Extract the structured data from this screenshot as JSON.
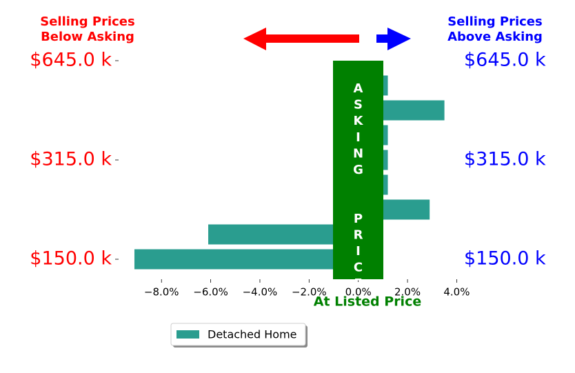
{
  "chart_data": {
    "type": "bar",
    "orientation": "horizontal",
    "annotations": {
      "below": [
        "Selling Prices",
        "Below Asking"
      ],
      "above": [
        "Selling Prices",
        "Above Asking"
      ],
      "center": "ASKING  PRICE"
    },
    "xlabel": "At Listed Price",
    "categories": [
      "$645.0 k",
      null,
      null,
      null,
      "$315.0 k",
      null,
      null,
      null,
      "$150.0 k"
    ],
    "series": [
      {
        "name": "Detached Home",
        "color": "#2a9d8f",
        "values": [
          null,
          1.2,
          3.5,
          1.2,
          1.2,
          1.2,
          2.9,
          -6.1,
          -9.1
        ]
      }
    ],
    "xlim": [
      -9.8,
      4.1
    ],
    "xticks": [
      {
        "value": -8,
        "label": "−8.0%"
      },
      {
        "value": -6,
        "label": "−6.0%"
      },
      {
        "value": -4,
        "label": "−4.0%"
      },
      {
        "value": -2,
        "label": "−2.0%"
      },
      {
        "value": 0,
        "label": "0.0%"
      },
      {
        "value": 2,
        "label": "2.0%"
      },
      {
        "value": 4,
        "label": "4.0%"
      }
    ],
    "legend": "lower-center"
  }
}
